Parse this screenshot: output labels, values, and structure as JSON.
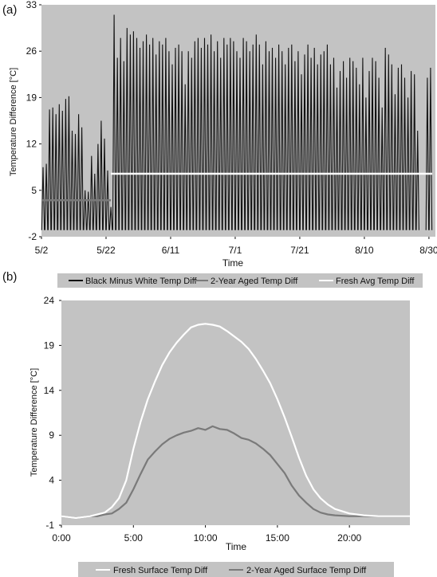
{
  "colors": {
    "plot_bg": "#c3c3c3",
    "legend_bg": "#c3c3c3",
    "black_minus_white": "#111111",
    "aged": "#7a7a7a",
    "fresh": "#ffffff"
  },
  "chart_data": [
    {
      "panel_label": "(a)",
      "type": "line",
      "xlabel": "Time",
      "ylabel": "Temperature Difference [°C]",
      "ylim": [
        -2,
        33
      ],
      "yticks": [
        "-2",
        "5",
        "12",
        "19",
        "26",
        "33"
      ],
      "xticks": [
        "5/2",
        "5/22",
        "6/11",
        "7/1",
        "7/21",
        "8/10",
        "8/30"
      ],
      "xlim_days": [
        0,
        122
      ],
      "grid": false,
      "legend_position": "bottom",
      "series": [
        {
          "name": "Black Minus White Temp Diff",
          "color": "#111111",
          "daily_min": -1,
          "daily_peaks": [
            {
              "day": 0,
              "peak": 8.5
            },
            {
              "day": 1,
              "peak": 9
            },
            {
              "day": 2,
              "peak": 17.2
            },
            {
              "day": 3,
              "peak": 17.5
            },
            {
              "day": 4,
              "peak": 16.5
            },
            {
              "day": 5,
              "peak": 18
            },
            {
              "day": 6,
              "peak": 17
            },
            {
              "day": 7,
              "peak": 18.8
            },
            {
              "day": 8,
              "peak": 19.2
            },
            {
              "day": 9,
              "peak": 14
            },
            {
              "day": 10,
              "peak": 13.5
            },
            {
              "day": 11,
              "peak": 16.5
            },
            {
              "day": 12,
              "peak": 14.5
            },
            {
              "day": 13,
              "peak": 5
            },
            {
              "day": 14,
              "peak": 4.8
            },
            {
              "day": 15,
              "peak": 10.2
            },
            {
              "day": 16,
              "peak": 7.5
            },
            {
              "day": 17,
              "peak": 12
            },
            {
              "day": 18,
              "peak": 15.5
            },
            {
              "day": 19,
              "peak": 12.8
            },
            {
              "day": 20,
              "peak": 8
            },
            {
              "day": 21,
              "peak": 2.5
            },
            {
              "day": 22,
              "peak": 31.5
            },
            {
              "day": 23,
              "peak": 25
            },
            {
              "day": 24,
              "peak": 28
            },
            {
              "day": 25,
              "peak": 24.5
            },
            {
              "day": 26,
              "peak": 29.5
            },
            {
              "day": 27,
              "peak": 28.5
            },
            {
              "day": 28,
              "peak": 29
            },
            {
              "day": 29,
              "peak": 28
            },
            {
              "day": 30,
              "peak": 26.5
            },
            {
              "day": 31,
              "peak": 27.5
            },
            {
              "day": 32,
              "peak": 28.5
            },
            {
              "day": 33,
              "peak": 27
            },
            {
              "day": 34,
              "peak": 28
            },
            {
              "day": 35,
              "peak": 25.5
            },
            {
              "day": 36,
              "peak": 27.5
            },
            {
              "day": 37,
              "peak": 27
            },
            {
              "day": 38,
              "peak": 28
            },
            {
              "day": 39,
              "peak": 26
            },
            {
              "day": 40,
              "peak": 24
            },
            {
              "day": 41,
              "peak": 26.5
            },
            {
              "day": 42,
              "peak": 27
            },
            {
              "day": 43,
              "peak": 26
            },
            {
              "day": 44,
              "peak": 21
            },
            {
              "day": 45,
              "peak": 26
            },
            {
              "day": 46,
              "peak": 25
            },
            {
              "day": 47,
              "peak": 27.5
            },
            {
              "day": 48,
              "peak": 28
            },
            {
              "day": 49,
              "peak": 26.5
            },
            {
              "day": 50,
              "peak": 28
            },
            {
              "day": 51,
              "peak": 27
            },
            {
              "day": 52,
              "peak": 28.5
            },
            {
              "day": 53,
              "peak": 26
            },
            {
              "day": 54,
              "peak": 27.5
            },
            {
              "day": 55,
              "peak": 25
            },
            {
              "day": 56,
              "peak": 28
            },
            {
              "day": 57,
              "peak": 27
            },
            {
              "day": 58,
              "peak": 28
            },
            {
              "day": 59,
              "peak": 27.5
            },
            {
              "day": 60,
              "peak": 26
            },
            {
              "day": 61,
              "peak": 25
            },
            {
              "day": 62,
              "peak": 28
            },
            {
              "day": 63,
              "peak": 27.5
            },
            {
              "day": 64,
              "peak": 26
            },
            {
              "day": 65,
              "peak": 27
            },
            {
              "day": 66,
              "peak": 28.5
            },
            {
              "day": 67,
              "peak": 27
            },
            {
              "day": 68,
              "peak": 24
            },
            {
              "day": 69,
              "peak": 27.5
            },
            {
              "day": 70,
              "peak": 26
            },
            {
              "day": 71,
              "peak": 26.5
            },
            {
              "day": 72,
              "peak": 25
            },
            {
              "day": 73,
              "peak": 27
            },
            {
              "day": 74,
              "peak": 26
            },
            {
              "day": 75,
              "peak": 24
            },
            {
              "day": 76,
              "peak": 26.5
            },
            {
              "day": 77,
              "peak": 27
            },
            {
              "day": 78,
              "peak": 24.5
            },
            {
              "day": 79,
              "peak": 26
            },
            {
              "day": 80,
              "peak": 22.5
            },
            {
              "day": 81,
              "peak": 25.5
            },
            {
              "day": 82,
              "peak": 27
            },
            {
              "day": 83,
              "peak": 25
            },
            {
              "day": 84,
              "peak": 26.5
            },
            {
              "day": 85,
              "peak": 24
            },
            {
              "day": 86,
              "peak": 25.5
            },
            {
              "day": 87,
              "peak": 26
            },
            {
              "day": 88,
              "peak": 27
            },
            {
              "day": 89,
              "peak": 24
            },
            {
              "day": 90,
              "peak": 25
            },
            {
              "day": 91,
              "peak": 20.5
            },
            {
              "day": 92,
              "peak": 23
            },
            {
              "day": 93,
              "peak": 24.5
            },
            {
              "day": 94,
              "peak": 22
            },
            {
              "day": 95,
              "peak": 25
            },
            {
              "day": 96,
              "peak": 24.5
            },
            {
              "day": 97,
              "peak": 23.5
            },
            {
              "day": 98,
              "peak": 21
            },
            {
              "day": 99,
              "peak": 25
            },
            {
              "day": 100,
              "peak": 19
            },
            {
              "day": 101,
              "peak": 23
            },
            {
              "day": 102,
              "peak": 25
            },
            {
              "day": 103,
              "peak": 24.5
            },
            {
              "day": 104,
              "peak": 22
            },
            {
              "day": 105,
              "peak": 17.5
            },
            {
              "day": 106,
              "peak": 26.5
            },
            {
              "day": 107,
              "peak": 25.5
            },
            {
              "day": 108,
              "peak": 24
            },
            {
              "day": 109,
              "peak": 19.5
            },
            {
              "day": 110,
              "peak": 23.5
            },
            {
              "day": 111,
              "peak": 24
            },
            {
              "day": 112,
              "peak": 22
            },
            {
              "day": 113,
              "peak": 19
            },
            {
              "day": 114,
              "peak": 23
            },
            {
              "day": 115,
              "peak": 22.5
            },
            {
              "day": 116,
              "peak": 14
            },
            {
              "day": 119,
              "peak": 22
            },
            {
              "day": 120,
              "peak": 23.5
            }
          ]
        },
        {
          "name": "2-Year Aged Temp Diff",
          "color": "#7a7a7a",
          "segments": [
            {
              "x_days": [
                0,
                21.5
              ],
              "y": 3.5
            }
          ]
        },
        {
          "name": "Fresh Avg Temp Diff",
          "color": "#ffffff",
          "segments": [
            {
              "x_days": [
                21.5,
                121
              ],
              "y": 7.5
            }
          ]
        }
      ]
    },
    {
      "panel_label": "(b)",
      "type": "line",
      "xlabel": "Time",
      "ylabel": "Temperature Difference [°C]",
      "ylim": [
        -1,
        24
      ],
      "yticks": [
        "-1",
        "4",
        "9",
        "14",
        "19",
        "24"
      ],
      "xticks": [
        "0:00",
        "5:00",
        "10:00",
        "15:00",
        "20:00"
      ],
      "xlim_hours": [
        0,
        24.2
      ],
      "grid": false,
      "legend_position": "bottom",
      "series": [
        {
          "name": "Fresh Surface Temp Diff",
          "color": "#ffffff",
          "x": [
            0,
            1,
            2,
            2.5,
            3,
            3.5,
            4,
            4.5,
            5,
            5.5,
            6,
            6.5,
            7,
            7.5,
            8,
            8.5,
            9,
            9.5,
            10,
            10.5,
            11,
            11.5,
            12,
            12.5,
            13,
            13.5,
            14,
            14.5,
            15,
            15.5,
            16,
            16.5,
            17,
            17.5,
            18,
            18.5,
            19,
            20,
            21,
            22,
            23,
            24.2
          ],
          "values": [
            0,
            -0.2,
            0,
            0.2,
            0.4,
            1,
            2,
            4,
            7.5,
            10.5,
            13,
            15,
            16.8,
            18.2,
            19.3,
            20.2,
            21,
            21.3,
            21.4,
            21.3,
            21.1,
            20.6,
            20,
            19.4,
            18.6,
            17.5,
            16.2,
            14.8,
            13,
            11,
            8.8,
            6.5,
            4.5,
            3,
            2,
            1.3,
            0.8,
            0.3,
            0.1,
            0,
            0,
            0
          ]
        },
        {
          "name": "2-Year Aged Surface Temp Diff",
          "color": "#7a7a7a",
          "x": [
            0,
            1,
            2,
            2.5,
            3,
            3.5,
            4,
            4.5,
            5,
            5.5,
            6,
            6.5,
            7,
            7.5,
            8,
            8.5,
            9,
            9.5,
            10,
            10.5,
            11,
            11.5,
            12,
            12.5,
            13,
            13.5,
            14,
            14.5,
            15,
            15.5,
            16,
            16.5,
            17,
            17.5,
            18,
            18.5,
            19,
            20,
            21,
            22,
            23,
            24.2
          ],
          "values": [
            0,
            -0.2,
            0,
            0,
            0.2,
            0.3,
            0.8,
            1.5,
            3,
            4.7,
            6.3,
            7.2,
            8,
            8.6,
            9,
            9.3,
            9.5,
            9.8,
            9.6,
            10,
            9.7,
            9.6,
            9.2,
            8.7,
            8.5,
            8.1,
            7.5,
            6.8,
            5.8,
            4.8,
            3.4,
            2.3,
            1.5,
            0.8,
            0.4,
            0.2,
            0.1,
            0,
            0,
            0,
            0,
            0
          ]
        }
      ]
    }
  ]
}
